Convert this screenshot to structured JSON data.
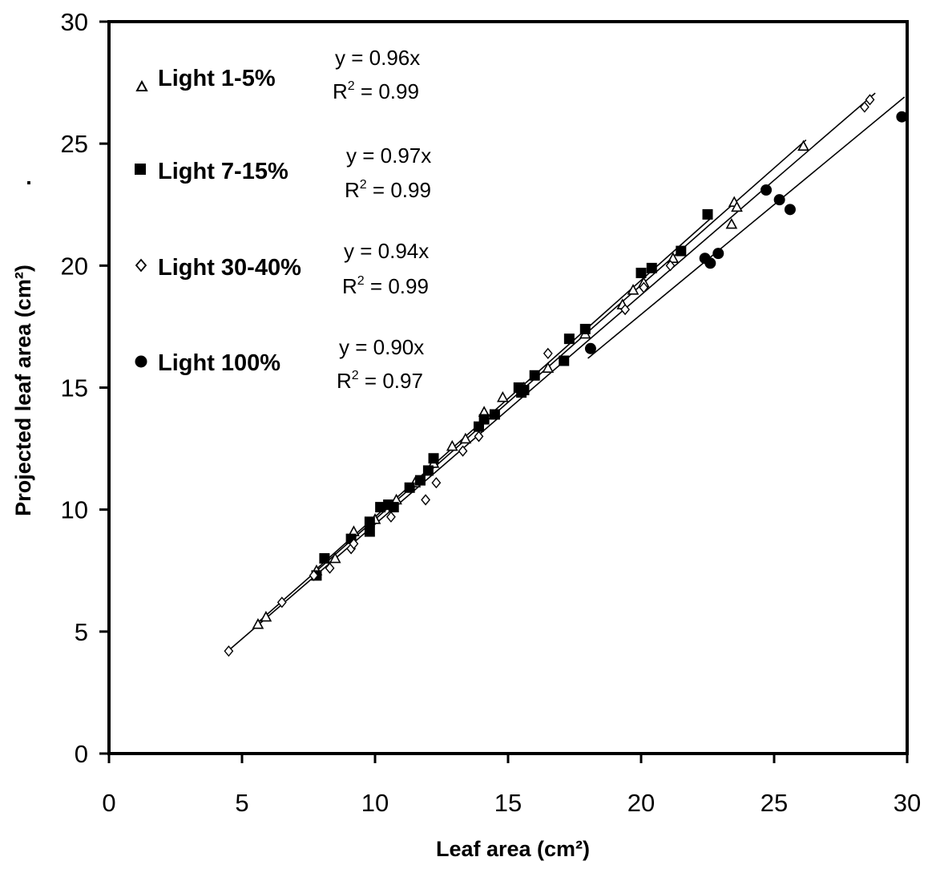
{
  "chart_data": {
    "type": "scatter",
    "title": "",
    "xlabel": "Leaf area (cm²)",
    "ylabel": "Projected leaf area (cm²)",
    "stray_mark": ".",
    "xlim": [
      0,
      30
    ],
    "ylim": [
      0,
      30
    ],
    "xticks": [
      0,
      5,
      10,
      15,
      20,
      25,
      30
    ],
    "yticks": [
      0,
      5,
      10,
      15,
      20,
      25,
      30
    ],
    "grid": false,
    "legend_position": "top-left",
    "series": [
      {
        "name": "Light 1-5%",
        "marker": "open-triangle",
        "equation": "y = 0.96x",
        "r2_label": "R",
        "r2_sup": "2",
        "r2_value": " = 0.99",
        "slope": 0.96,
        "fit_range": [
          5.5,
          26.2
        ],
        "points": [
          [
            5.6,
            5.3
          ],
          [
            5.9,
            5.6
          ],
          [
            7.8,
            7.5
          ],
          [
            8.5,
            8.0
          ],
          [
            9.2,
            9.1
          ],
          [
            10.0,
            9.6
          ],
          [
            10.8,
            10.4
          ],
          [
            11.5,
            11.1
          ],
          [
            12.2,
            11.9
          ],
          [
            12.9,
            12.6
          ],
          [
            13.4,
            12.9
          ],
          [
            14.1,
            14.0
          ],
          [
            14.8,
            14.6
          ],
          [
            15.6,
            15.0
          ],
          [
            16.5,
            15.8
          ],
          [
            17.9,
            17.2
          ],
          [
            19.3,
            18.4
          ],
          [
            19.7,
            19.0
          ],
          [
            20.1,
            19.3
          ],
          [
            21.2,
            20.3
          ],
          [
            23.4,
            21.7
          ],
          [
            23.5,
            22.6
          ],
          [
            23.6,
            22.4
          ],
          [
            26.1,
            24.9
          ]
        ]
      },
      {
        "name": "Light 7-15%",
        "marker": "filled-square",
        "equation": "y = 0.97x",
        "r2_label": "R",
        "r2_sup": "2",
        "r2_value": " = 0.99",
        "slope": 0.97,
        "fit_range": [
          7.7,
          22.6
        ],
        "points": [
          [
            7.8,
            7.3
          ],
          [
            8.1,
            8.0
          ],
          [
            9.1,
            8.8
          ],
          [
            9.8,
            9.1
          ],
          [
            9.8,
            9.5
          ],
          [
            10.2,
            10.1
          ],
          [
            10.5,
            10.2
          ],
          [
            10.7,
            10.1
          ],
          [
            11.3,
            10.9
          ],
          [
            11.7,
            11.2
          ],
          [
            12.0,
            11.6
          ],
          [
            12.2,
            12.1
          ],
          [
            13.9,
            13.4
          ],
          [
            14.1,
            13.7
          ],
          [
            14.5,
            13.9
          ],
          [
            15.4,
            15.0
          ],
          [
            15.5,
            14.8
          ],
          [
            15.6,
            14.9
          ],
          [
            16.0,
            15.5
          ],
          [
            17.1,
            16.1
          ],
          [
            17.3,
            17.0
          ],
          [
            17.9,
            17.4
          ],
          [
            20.0,
            19.7
          ],
          [
            20.4,
            19.9
          ],
          [
            21.5,
            20.6
          ],
          [
            22.5,
            22.1
          ]
        ]
      },
      {
        "name": "Light 30-40%",
        "marker": "open-diamond",
        "equation": "y = 0.94x",
        "r2_label": "R",
        "r2_sup": "2",
        "r2_value": " = 0.99",
        "slope": 0.94,
        "fit_range": [
          4.4,
          28.8
        ],
        "points": [
          [
            4.5,
            4.2
          ],
          [
            6.5,
            6.2
          ],
          [
            7.7,
            7.3
          ],
          [
            8.3,
            7.6
          ],
          [
            9.1,
            8.4
          ],
          [
            9.2,
            8.6
          ],
          [
            10.6,
            9.7
          ],
          [
            11.9,
            10.4
          ],
          [
            12.3,
            11.1
          ],
          [
            13.3,
            12.4
          ],
          [
            13.9,
            13.0
          ],
          [
            16.5,
            16.4
          ],
          [
            19.4,
            18.2
          ],
          [
            20.1,
            19.1
          ],
          [
            21.1,
            20.0
          ],
          [
            28.4,
            26.5
          ],
          [
            28.6,
            26.8
          ]
        ]
      },
      {
        "name": "Light 100%",
        "marker": "filled-circle",
        "equation": "y = 0.90x",
        "r2_label": "R",
        "r2_sup": "2",
        "r2_value": " = 0.97",
        "slope": 0.9,
        "fit_range": [
          18.0,
          29.9
        ],
        "points": [
          [
            18.1,
            16.6
          ],
          [
            22.4,
            20.3
          ],
          [
            22.6,
            20.1
          ],
          [
            22.9,
            20.5
          ],
          [
            24.7,
            23.1
          ],
          [
            25.2,
            22.7
          ],
          [
            25.6,
            22.3
          ],
          [
            29.8,
            26.1
          ]
        ]
      }
    ]
  }
}
